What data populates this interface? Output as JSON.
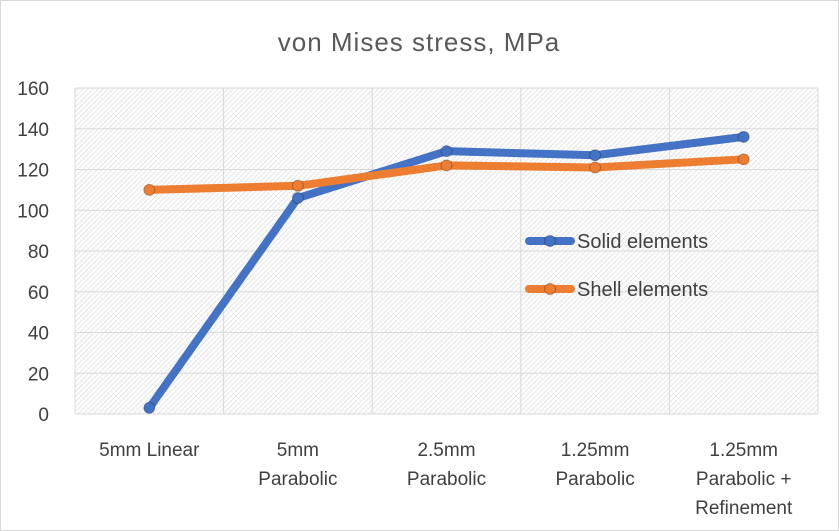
{
  "chart_data": {
    "type": "line",
    "title": "von Mises stress, MPa",
    "categories": [
      [
        "5mm Linear"
      ],
      [
        "5mm",
        "Parabolic"
      ],
      [
        "2.5mm",
        "Parabolic"
      ],
      [
        "1.25mm",
        "Parabolic"
      ],
      [
        "1.25mm",
        "Parabolic +",
        "Refinement"
      ]
    ],
    "ylim": [
      0,
      160
    ],
    "yticks": [
      0,
      20,
      40,
      60,
      80,
      100,
      120,
      140,
      160
    ],
    "grid": true,
    "legend_position": "right",
    "series": [
      {
        "name": "Solid elements",
        "color": "#4472c4",
        "values": [
          3,
          106,
          129,
          127,
          136
        ]
      },
      {
        "name": "Shell elements",
        "color": "#ed7d31",
        "values": [
          110,
          112,
          122,
          121,
          125
        ]
      }
    ]
  }
}
